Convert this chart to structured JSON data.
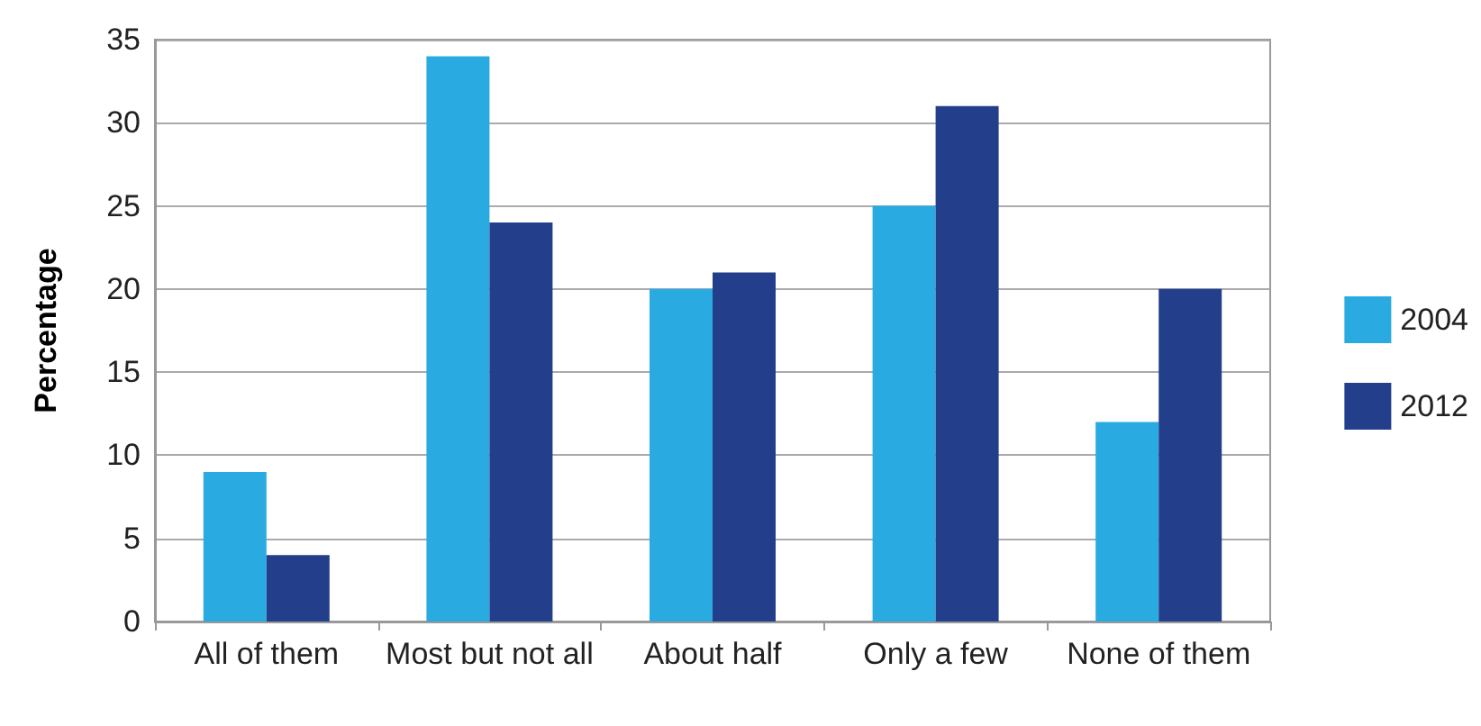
{
  "chart_data": {
    "type": "bar",
    "ylabel": "Percentage",
    "categories": [
      "All of them",
      "Most but not all",
      "About half",
      "Only a few",
      "None of them"
    ],
    "series": [
      {
        "name": "2004",
        "color": "#29abe2",
        "values": [
          9,
          34,
          20,
          25,
          12
        ]
      },
      {
        "name": "2012",
        "color": "#233f8c",
        "values": [
          4,
          24,
          21,
          31,
          20
        ]
      }
    ],
    "ylim": [
      0,
      35
    ],
    "yticks": [
      0,
      5,
      10,
      15,
      20,
      25,
      30,
      35
    ],
    "grid": "y",
    "legend": "right"
  }
}
